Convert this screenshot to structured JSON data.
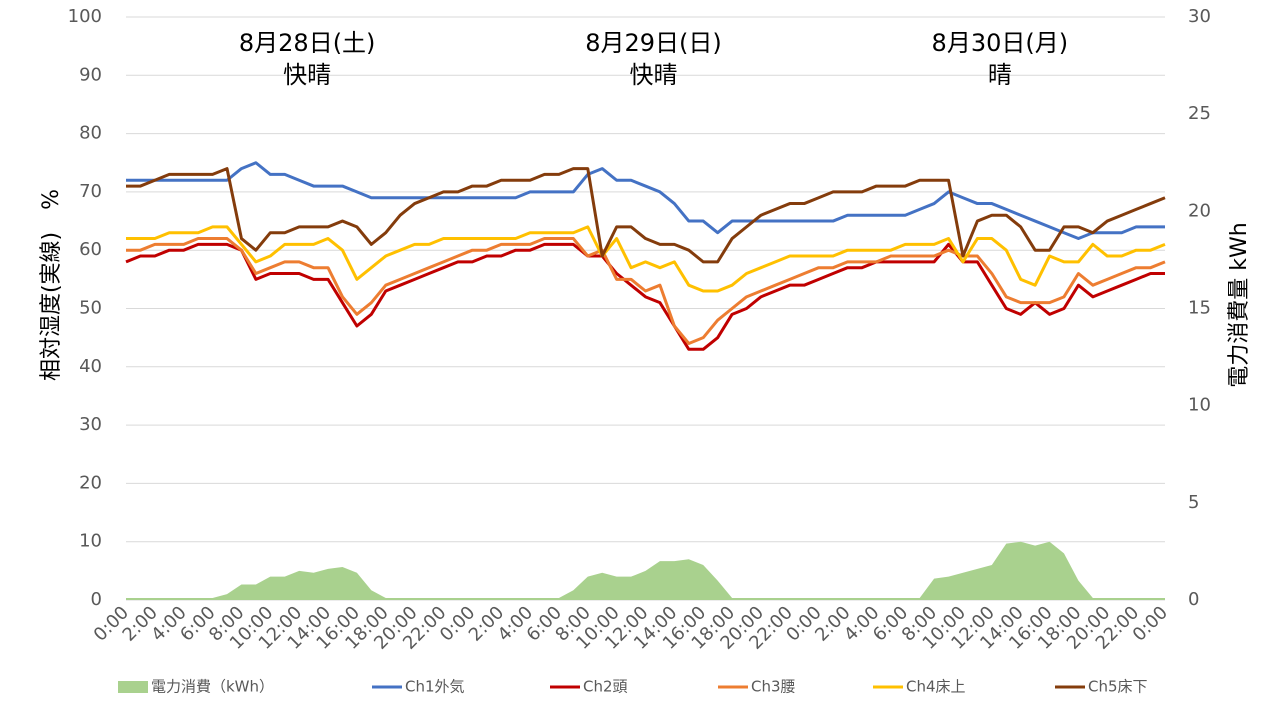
{
  "chart_data": {
    "type": "line",
    "annotations": [
      {
        "date": "8月28日(土)",
        "weather": "快晴"
      },
      {
        "date": "8月29日(日)",
        "weather": "快晴"
      },
      {
        "date": "8月30日(月)",
        "weather": "晴"
      }
    ],
    "y_label": "相対湿度(実線)　%",
    "y2_label": "電力消費量 kWh",
    "categories": [
      "0:00",
      null,
      "2:00",
      null,
      "4:00",
      null,
      "6:00",
      null,
      "8:00",
      null,
      "10:00",
      null,
      "12:00",
      null,
      "14:00",
      null,
      "16:00",
      null,
      "18:00",
      null,
      "20:00",
      null,
      "22:00",
      null,
      "0:00",
      null,
      "2:00",
      null,
      "4:00",
      null,
      "6:00",
      null,
      "8:00",
      null,
      "10:00",
      null,
      "12:00",
      null,
      "14:00",
      null,
      "16:00",
      null,
      "18:00",
      null,
      "20:00",
      null,
      "22:00",
      null,
      "0:00",
      null,
      "2:00",
      null,
      "4:00",
      null,
      "6:00",
      null,
      "8:00",
      null,
      "10:00",
      null,
      "12:00",
      null,
      "14:00",
      null,
      "16:00",
      null,
      "18:00",
      null,
      "20:00",
      null,
      "22:00",
      null,
      "0:00"
    ],
    "ylim": [
      0,
      100
    ],
    "yticks": [
      0,
      10,
      20,
      30,
      40,
      50,
      60,
      70,
      80,
      90,
      100
    ],
    "y2lim": [
      0,
      30
    ],
    "y2ticks": [
      0,
      5,
      10,
      15,
      20,
      25,
      30
    ],
    "grid": true,
    "series": [
      {
        "name": "電力消費（kWh）",
        "type": "area",
        "axis": "y2",
        "color": "#a9d18e",
        "values": [
          0.1,
          0.1,
          0.1,
          0.1,
          0.1,
          0.1,
          0.1,
          0.3,
          0.8,
          0.8,
          1.2,
          1.2,
          1.5,
          1.4,
          1.6,
          1.7,
          1.4,
          0.5,
          0.1,
          0.1,
          0.1,
          0.1,
          0.1,
          0.1,
          0.1,
          0.1,
          0.1,
          0.1,
          0.1,
          0.1,
          0.1,
          0.5,
          1.2,
          1.4,
          1.2,
          1.2,
          1.5,
          2.0,
          2.0,
          2.1,
          1.8,
          1.0,
          0.1,
          0.1,
          0.1,
          0.1,
          0.1,
          0.1,
          0.1,
          0.1,
          0.1,
          0.1,
          0.1,
          0.1,
          0.1,
          0.1,
          1.1,
          1.2,
          1.4,
          1.6,
          1.8,
          2.9,
          3.0,
          2.8,
          3.0,
          2.4,
          1.0,
          0.1,
          0.1,
          0.1,
          0.1,
          0.1,
          0.1
        ]
      },
      {
        "name": "Ch1外気",
        "color": "#4472c4",
        "values": [
          72,
          72,
          72,
          72,
          72,
          72,
          72,
          72,
          74,
          75,
          73,
          73,
          72,
          71,
          71,
          71,
          70,
          69,
          69,
          69,
          69,
          69,
          69,
          69,
          69,
          69,
          69,
          69,
          70,
          70,
          70,
          70,
          73,
          74,
          72,
          72,
          71,
          70,
          68,
          65,
          65,
          63,
          65,
          65,
          65,
          65,
          65,
          65,
          65,
          65,
          66,
          66,
          66,
          66,
          66,
          67,
          68,
          70,
          69,
          68,
          68,
          67,
          66,
          65,
          64,
          63,
          62,
          63,
          63,
          63,
          64,
          64,
          64
        ]
      },
      {
        "name": "Ch2頭",
        "color": "#c00000",
        "values": [
          58,
          59,
          59,
          60,
          60,
          61,
          61,
          61,
          60,
          55,
          56,
          56,
          56,
          55,
          55,
          51,
          47,
          49,
          53,
          54,
          55,
          56,
          57,
          58,
          58,
          59,
          59,
          60,
          60,
          61,
          61,
          61,
          59,
          59,
          56,
          54,
          52,
          51,
          47,
          43,
          43,
          45,
          49,
          50,
          52,
          53,
          54,
          54,
          55,
          56,
          57,
          57,
          58,
          58,
          58,
          58,
          58,
          61,
          58,
          58,
          54,
          50,
          49,
          51,
          49,
          50,
          54,
          52,
          53,
          54,
          55,
          56,
          56
        ]
      },
      {
        "name": "Ch3腰",
        "color": "#ed7d31",
        "values": [
          60,
          60,
          61,
          61,
          61,
          62,
          62,
          62,
          60,
          56,
          57,
          58,
          58,
          57,
          57,
          52,
          49,
          51,
          54,
          55,
          56,
          57,
          58,
          59,
          60,
          60,
          61,
          61,
          61,
          62,
          62,
          62,
          59,
          60,
          55,
          55,
          53,
          54,
          47,
          44,
          45,
          48,
          50,
          52,
          53,
          54,
          55,
          56,
          57,
          57,
          58,
          58,
          58,
          59,
          59,
          59,
          59,
          60,
          59,
          59,
          56,
          52,
          51,
          51,
          51,
          52,
          56,
          54,
          55,
          56,
          57,
          57,
          58
        ]
      },
      {
        "name": "Ch4床上",
        "color": "#ffc000",
        "values": [
          62,
          62,
          62,
          63,
          63,
          63,
          64,
          64,
          61,
          58,
          59,
          61,
          61,
          61,
          62,
          60,
          55,
          57,
          59,
          60,
          61,
          61,
          62,
          62,
          62,
          62,
          62,
          62,
          63,
          63,
          63,
          63,
          64,
          59,
          62,
          57,
          58,
          57,
          58,
          54,
          53,
          53,
          54,
          56,
          57,
          58,
          59,
          59,
          59,
          59,
          60,
          60,
          60,
          60,
          61,
          61,
          61,
          62,
          58,
          62,
          62,
          60,
          55,
          54,
          59,
          58,
          58,
          61,
          59,
          59,
          60,
          60,
          61
        ]
      },
      {
        "name": "Ch5床下",
        "color": "#843c0c",
        "values": [
          71,
          71,
          72,
          73,
          73,
          73,
          73,
          74,
          62,
          60,
          63,
          63,
          64,
          64,
          64,
          65,
          64,
          61,
          63,
          66,
          68,
          69,
          70,
          70,
          71,
          71,
          72,
          72,
          72,
          73,
          73,
          74,
          74,
          59,
          64,
          64,
          62,
          61,
          61,
          60,
          58,
          58,
          62,
          64,
          66,
          67,
          68,
          68,
          69,
          70,
          70,
          70,
          71,
          71,
          71,
          72,
          72,
          72,
          59,
          65,
          66,
          66,
          64,
          60,
          60,
          64,
          64,
          63,
          65,
          66,
          67,
          68,
          69
        ]
      }
    ]
  }
}
